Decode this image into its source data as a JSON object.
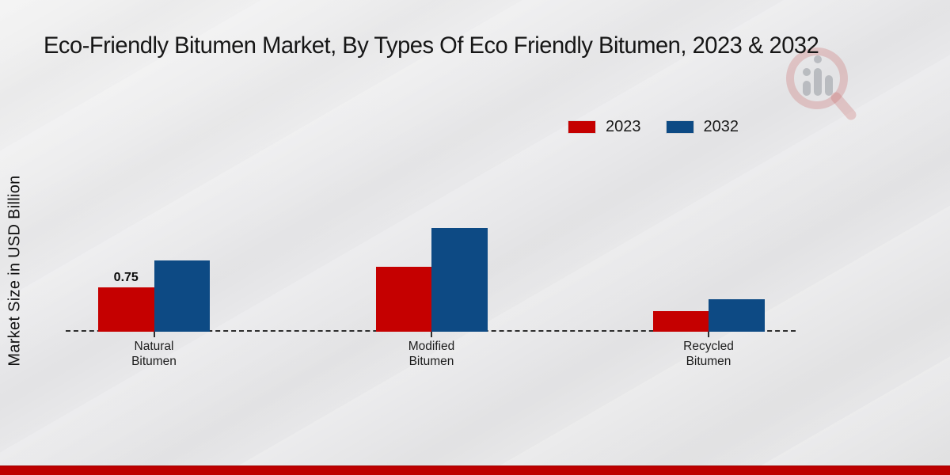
{
  "title": "Eco-Friendly Bitumen Market, By Types Of Eco Friendly Bitumen, 2023 & 2032",
  "watermark_icon": "magnifier-bar-chart-logo",
  "colors": {
    "series_2023": "#c50000",
    "series_2032": "#0d4a84",
    "footer_bar": "#bd0000",
    "baseline": "#2e2e2e",
    "background": "#e9e9ea"
  },
  "chart_data": {
    "type": "bar",
    "title": "Eco-Friendly Bitumen Market, By Types Of Eco Friendly Bitumen, 2023 & 2032",
    "xlabel": "",
    "ylabel": "Market Size in USD Billion",
    "categories": [
      "Natural\nBitumen",
      "Modified\nBitumen",
      "Recycled\nBitumen"
    ],
    "series": [
      {
        "name": "2023",
        "color": "#c50000",
        "values": [
          0.75,
          1.1,
          0.35
        ],
        "value_labels": [
          "0.75",
          "",
          ""
        ]
      },
      {
        "name": "2032",
        "color": "#0d4a84",
        "values": [
          1.2,
          1.75,
          0.55
        ],
        "value_labels": [
          "",
          "",
          ""
        ]
      }
    ],
    "grid": false,
    "legend_position": "top-right",
    "baseline_style": "dashed"
  }
}
